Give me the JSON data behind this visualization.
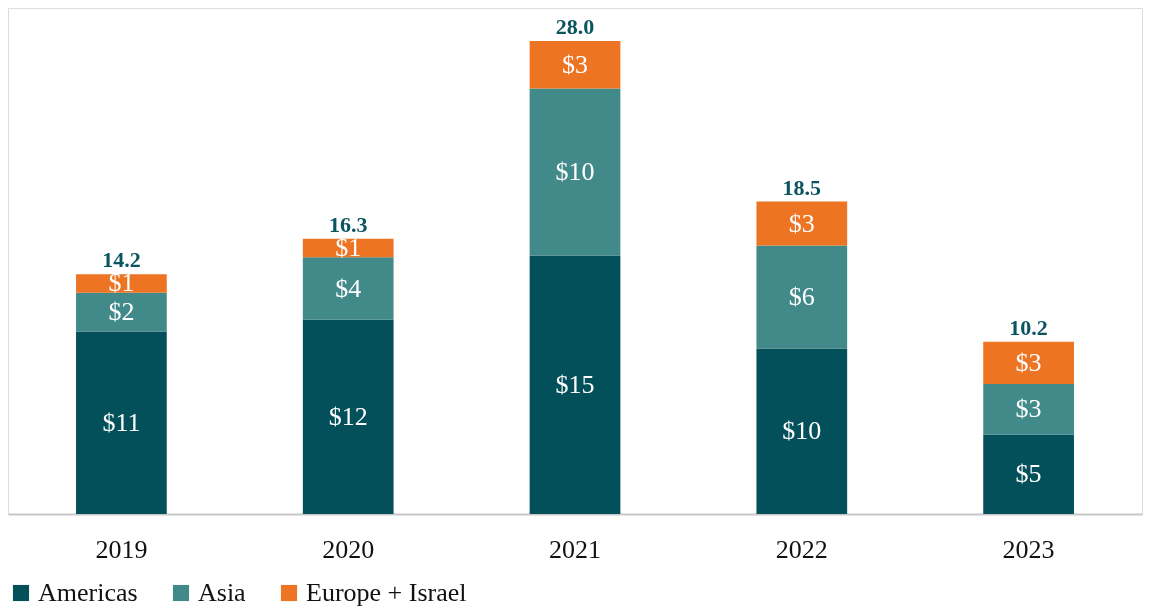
{
  "chart_data": {
    "type": "bar",
    "stacked": true,
    "categories": [
      "2019",
      "2020",
      "2021",
      "2022",
      "2023"
    ],
    "series": [
      {
        "name": "Americas",
        "color": "#034f5a",
        "values": [
          10.8,
          11.5,
          15.3,
          9.8,
          4.7
        ],
        "value_labels": [
          "$11",
          "$12",
          "$15",
          "$10",
          "$5"
        ]
      },
      {
        "name": "Asia",
        "color": "#428a8a",
        "values": [
          2.3,
          3.7,
          9.9,
          6.1,
          3.0
        ],
        "value_labels": [
          "$2",
          "$4",
          "$10",
          "$6",
          "$3"
        ]
      },
      {
        "name": "Europe + Israel",
        "color": "#ec7422",
        "values": [
          1.1,
          1.1,
          2.8,
          2.6,
          2.5
        ],
        "value_labels": [
          "$1",
          "$1",
          "$3",
          "$3",
          "$3"
        ]
      }
    ],
    "totals": [
      "14.2",
      "16.3",
      "28.0",
      "18.5",
      "10.2"
    ],
    "legend": "bottom",
    "grid": false
  }
}
